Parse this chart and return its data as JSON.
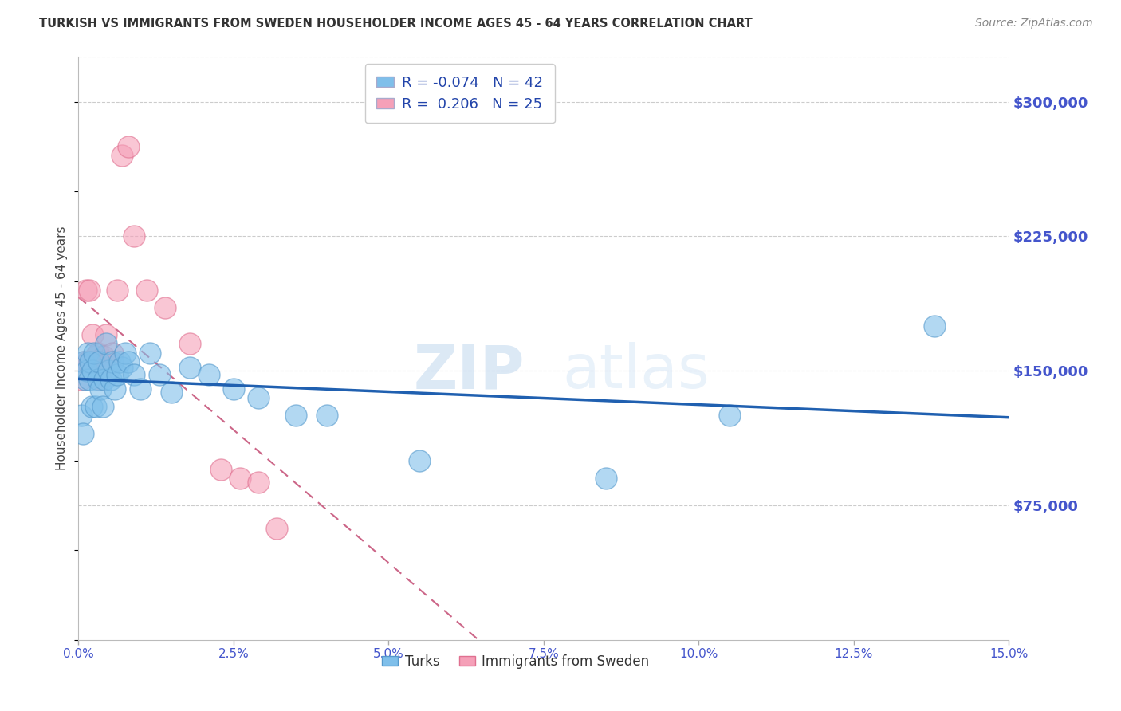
{
  "title": "TURKISH VS IMMIGRANTS FROM SWEDEN HOUSEHOLDER INCOME AGES 45 - 64 YEARS CORRELATION CHART",
  "source": "Source: ZipAtlas.com",
  "ylabel": "Householder Income Ages 45 - 64 years",
  "xlabel_ticks": [
    "0.0%",
    "2.5%",
    "5.0%",
    "7.5%",
    "10.0%",
    "12.5%",
    "15.0%"
  ],
  "xlabel_vals": [
    0.0,
    2.5,
    5.0,
    7.5,
    10.0,
    12.5,
    15.0
  ],
  "ytick_labels": [
    "$75,000",
    "$150,000",
    "$225,000",
    "$300,000"
  ],
  "ytick_vals": [
    75000,
    150000,
    225000,
    300000
  ],
  "ylim": [
    0,
    325000
  ],
  "xlim": [
    0.0,
    15.0
  ],
  "legend_turks": "Turks",
  "legend_sweden": "Immigrants from Sweden",
  "R_turks": -0.074,
  "N_turks": 42,
  "R_sweden": 0.206,
  "N_sweden": 25,
  "turks_color": "#7fbfea",
  "sweden_color": "#f5a0b8",
  "turks_edge_color": "#5599cc",
  "sweden_edge_color": "#e07090",
  "turks_line_color": "#2060b0",
  "sweden_line_color": "#cc6688",
  "background_color": "#ffffff",
  "grid_color": "#cccccc",
  "title_color": "#333333",
  "axis_color": "#4455cc",
  "watermark": "ZIPatlas",
  "turks_x": [
    0.05,
    0.07,
    0.09,
    0.11,
    0.13,
    0.15,
    0.17,
    0.19,
    0.21,
    0.23,
    0.25,
    0.28,
    0.31,
    0.33,
    0.36,
    0.39,
    0.42,
    0.45,
    0.48,
    0.52,
    0.55,
    0.58,
    0.62,
    0.66,
    0.7,
    0.75,
    0.8,
    0.9,
    1.0,
    1.15,
    1.3,
    1.5,
    1.8,
    2.1,
    2.5,
    2.9,
    3.5,
    4.0,
    5.5,
    8.5,
    10.5,
    13.8
  ],
  "turks_y": [
    125000,
    115000,
    155000,
    145000,
    150000,
    160000,
    145000,
    155000,
    130000,
    150000,
    160000,
    130000,
    145000,
    155000,
    140000,
    130000,
    145000,
    165000,
    150000,
    145000,
    155000,
    140000,
    148000,
    155000,
    152000,
    160000,
    155000,
    148000,
    140000,
    160000,
    148000,
    138000,
    152000,
    148000,
    140000,
    135000,
    125000,
    125000,
    100000,
    90000,
    125000,
    175000
  ],
  "sweden_x": [
    0.05,
    0.08,
    0.12,
    0.15,
    0.18,
    0.22,
    0.25,
    0.28,
    0.32,
    0.36,
    0.4,
    0.45,
    0.5,
    0.55,
    0.62,
    0.7,
    0.8,
    0.9,
    1.1,
    1.4,
    1.8,
    2.3,
    2.6,
    2.9,
    3.2
  ],
  "sweden_y": [
    145000,
    155000,
    195000,
    155000,
    195000,
    170000,
    155000,
    158000,
    160000,
    145000,
    158000,
    170000,
    155000,
    160000,
    195000,
    270000,
    275000,
    225000,
    195000,
    185000,
    165000,
    95000,
    90000,
    88000,
    62000
  ],
  "turks_trendline_start_x": 0.0,
  "turks_trendline_end_x": 15.0,
  "sweden_trendline_start_x": 0.0,
  "sweden_trendline_end_x": 15.0
}
